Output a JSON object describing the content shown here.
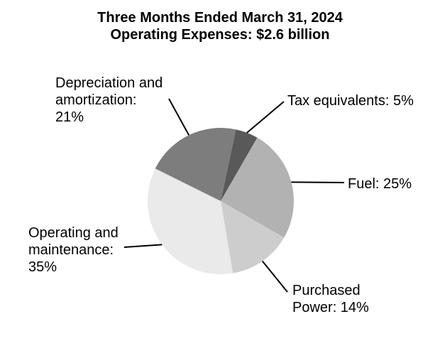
{
  "figure_title": {
    "line1": "Three Months Ended March 31, 2024",
    "line2": "Operating Expenses: $2.6 billion"
  },
  "chart_data": {
    "type": "pie",
    "title": "Three Months Ended March 31, 2024",
    "subtitle": "Operating Expenses: $2.6 billion",
    "total_label": "$2.6 billion",
    "unit": "%",
    "slices": [
      {
        "name": "Tax equivalents",
        "value": 5,
        "color": "#595959",
        "label_lines": [
          "Tax equivalents: 5%"
        ]
      },
      {
        "name": "Fuel",
        "value": 25,
        "color": "#b2b2b2",
        "label_lines": [
          "Fuel: 25%"
        ]
      },
      {
        "name": "Purchased Power",
        "value": 14,
        "color": "#cdcdcd",
        "label_lines": [
          "Purchased",
          "Power: 14%"
        ]
      },
      {
        "name": "Operating and maintenance",
        "value": 35,
        "color": "#eaeaea",
        "label_lines": [
          "Operating and",
          "maintenance:",
          "35%"
        ]
      },
      {
        "name": "Depreciation and amortization",
        "value": 21,
        "color": "#7d7d7d",
        "label_lines": [
          "Depreciation and",
          "amortization:",
          "21%"
        ]
      }
    ],
    "layout_hints": {
      "direction": "clockwise",
      "start_offset_deg": 12,
      "legend": "none",
      "labels": "outside-with-leader-lines"
    },
    "leader_line_color": "#000000",
    "background_color": "#ffffff",
    "text_color": "#000000"
  }
}
